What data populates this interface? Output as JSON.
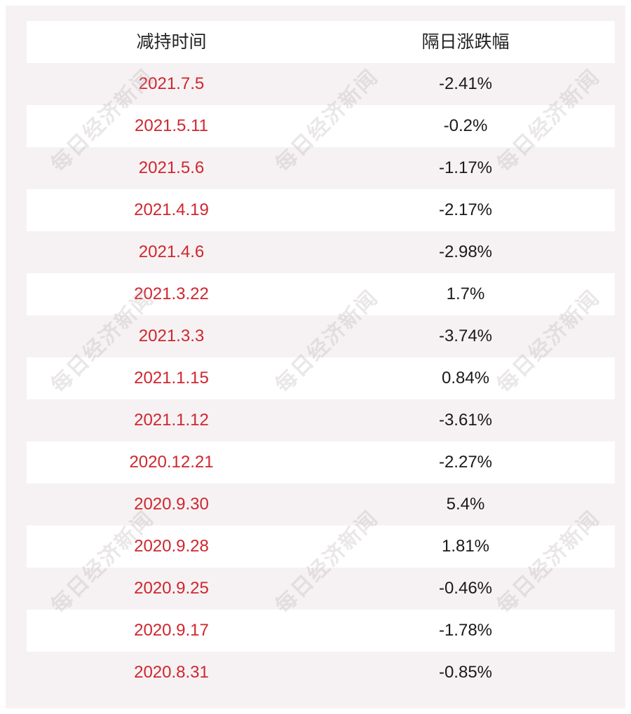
{
  "table": {
    "headers": [
      "减持时间",
      "隔日涨跌幅"
    ],
    "rows": [
      {
        "date": "2021.7.5",
        "change": "-2.41%"
      },
      {
        "date": "2021.5.11",
        "change": "-0.2%"
      },
      {
        "date": "2021.5.6",
        "change": "-1.17%"
      },
      {
        "date": "2021.4.19",
        "change": "-2.17%"
      },
      {
        "date": "2021.4.6",
        "change": "-2.98%"
      },
      {
        "date": "2021.3.22",
        "change": "1.7%"
      },
      {
        "date": "2021.3.3",
        "change": "-3.74%"
      },
      {
        "date": "2021.1.15",
        "change": "0.84%"
      },
      {
        "date": "2021.1.12",
        "change": "-3.61%"
      },
      {
        "date": "2020.12.21",
        "change": "-2.27%"
      },
      {
        "date": "2020.9.30",
        "change": "5.4%"
      },
      {
        "date": "2020.9.28",
        "change": "1.81%"
      },
      {
        "date": "2020.9.25",
        "change": "-0.46%"
      },
      {
        "date": "2020.9.17",
        "change": "-1.78%"
      },
      {
        "date": "2020.8.31",
        "change": "-0.85%"
      }
    ]
  },
  "watermark": "每日经济新闻",
  "colors": {
    "date_text": "#d0262f",
    "change_text": "#1a1a1a",
    "row_light": "#ffffff",
    "row_shade": "#f6f2f3"
  }
}
